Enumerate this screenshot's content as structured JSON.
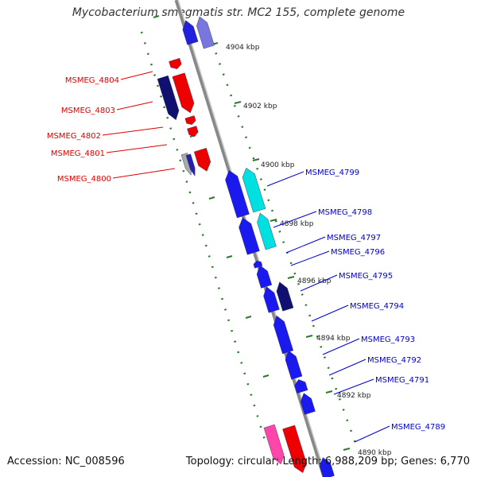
{
  "title": "Mycobacterium smegmatis str. MC2 155, complete genome",
  "footer": {
    "accession": "Accession: NC_008596",
    "topology": "Topology: circular; Length: 6,988,209 bp; Genes: 6,770"
  },
  "colors": {
    "backbone": "#999999",
    "tick": "#2a7a2a",
    "forward_label": "#dd0000",
    "reverse_label": "#0000cc"
  },
  "scale_labels": [
    "4904 kbp",
    "4902 kbp",
    "4900 kbp",
    "4898 kbp",
    "4896 kbp",
    "4894 kbp",
    "4892 kbp",
    "4890 kbp"
  ],
  "forward_genes": [
    "MSMEG_4804",
    "MSMEG_4803",
    "MSMEG_4802",
    "MSMEG_4801",
    "MSMEG_4800"
  ],
  "reverse_genes": [
    "MSMEG_4799",
    "MSMEG_4798",
    "MSMEG_4797",
    "MSMEG_4796",
    "MSMEG_4795",
    "MSMEG_4794",
    "MSMEG_4793",
    "MSMEG_4792",
    "MSMEG_4791",
    "MSMEG_4789"
  ]
}
